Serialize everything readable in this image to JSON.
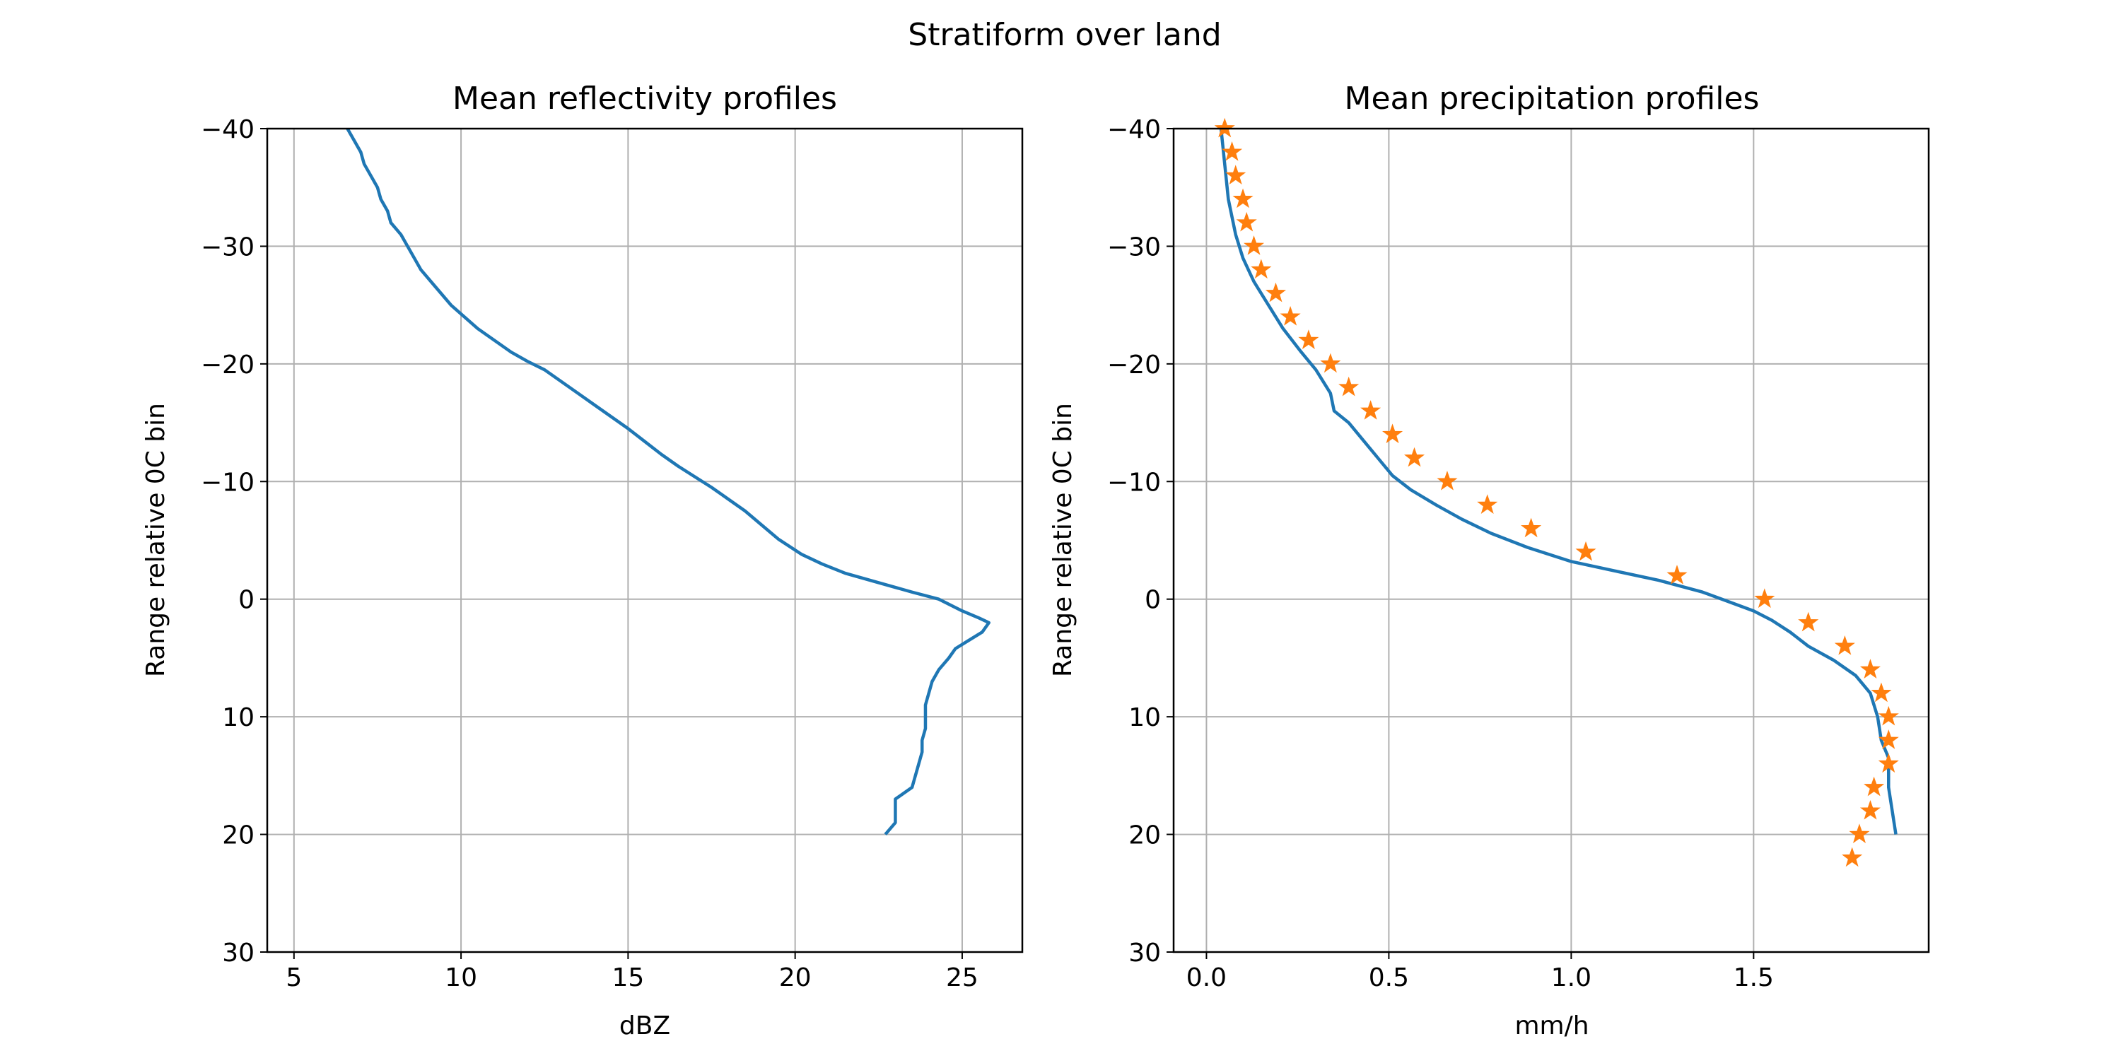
{
  "figure": {
    "suptitle": "Stratiform over land"
  },
  "chart_data": [
    {
      "type": "line",
      "title": "Mean reflectivity profiles",
      "xlabel": "dBZ",
      "ylabel": "Range relative 0C bin",
      "xlim": [
        4.2,
        26.8
      ],
      "ylim": [
        30,
        -40
      ],
      "y_inverted": true,
      "xticks": [
        5,
        10,
        15,
        20,
        25
      ],
      "yticks": [
        -40,
        -30,
        -20,
        -10,
        0,
        10,
        20,
        30
      ],
      "grid": true,
      "series": [
        {
          "color": "#1f77b4",
          "marker": "none",
          "points": [
            [
              6.6,
              -40
            ],
            [
              6.8,
              -39
            ],
            [
              7.0,
              -38
            ],
            [
              7.1,
              -37
            ],
            [
              7.3,
              -36
            ],
            [
              7.5,
              -35
            ],
            [
              7.6,
              -34
            ],
            [
              7.8,
              -33
            ],
            [
              7.9,
              -32
            ],
            [
              8.2,
              -31
            ],
            [
              8.4,
              -30
            ],
            [
              8.6,
              -29
            ],
            [
              8.8,
              -28
            ],
            [
              9.1,
              -27
            ],
            [
              9.4,
              -26
            ],
            [
              9.7,
              -25
            ],
            [
              10.1,
              -24
            ],
            [
              10.5,
              -23
            ],
            [
              11.0,
              -22
            ],
            [
              11.5,
              -21
            ],
            [
              12.0,
              -20.2
            ],
            [
              12.5,
              -19.5
            ],
            [
              13.0,
              -18.5
            ],
            [
              13.5,
              -17.5
            ],
            [
              14.0,
              -16.5
            ],
            [
              14.5,
              -15.5
            ],
            [
              15.0,
              -14.5
            ],
            [
              15.5,
              -13.4
            ],
            [
              16.0,
              -12.3
            ],
            [
              16.5,
              -11.3
            ],
            [
              17.0,
              -10.4
            ],
            [
              17.5,
              -9.5
            ],
            [
              18.0,
              -8.5
            ],
            [
              18.5,
              -7.5
            ],
            [
              19.0,
              -6.3
            ],
            [
              19.5,
              -5.1
            ],
            [
              20.2,
              -3.8
            ],
            [
              20.8,
              -3.0
            ],
            [
              21.5,
              -2.2
            ],
            [
              22.5,
              -1.4
            ],
            [
              23.5,
              -0.6
            ],
            [
              24.3,
              0
            ],
            [
              25.0,
              1.0
            ],
            [
              25.5,
              1.6
            ],
            [
              25.8,
              2.0
            ],
            [
              25.6,
              2.8
            ],
            [
              25.2,
              3.5
            ],
            [
              24.8,
              4.2
            ],
            [
              24.6,
              5.0
            ],
            [
              24.3,
              6.0
            ],
            [
              24.1,
              7.0
            ],
            [
              24.0,
              8.0
            ],
            [
              23.9,
              9.0
            ],
            [
              23.9,
              10
            ],
            [
              23.9,
              11
            ],
            [
              23.8,
              12
            ],
            [
              23.8,
              13
            ],
            [
              23.7,
              14
            ],
            [
              23.6,
              15
            ],
            [
              23.5,
              16
            ],
            [
              23.0,
              17
            ],
            [
              23.0,
              18
            ],
            [
              23.0,
              19
            ],
            [
              22.7,
              20
            ]
          ]
        }
      ]
    },
    {
      "type": "line",
      "title": "Mean precipitation profiles",
      "xlabel": "mm/h",
      "ylabel": "Range relative 0C bin",
      "xlim": [
        -0.09,
        1.98
      ],
      "ylim": [
        30,
        -40
      ],
      "y_inverted": true,
      "xticks": [
        0.0,
        0.5,
        1.0,
        1.5
      ],
      "xtick_labels": [
        "0.0",
        "0.5",
        "1.0",
        "1.5"
      ],
      "yticks": [
        -40,
        -30,
        -20,
        -10,
        0,
        10,
        20,
        30
      ],
      "grid": true,
      "series": [
        {
          "color": "#1f77b4",
          "marker": "none",
          "points": [
            [
              0.04,
              -40
            ],
            [
              0.05,
              -37
            ],
            [
              0.06,
              -34
            ],
            [
              0.08,
              -31
            ],
            [
              0.1,
              -29
            ],
            [
              0.13,
              -27
            ],
            [
              0.17,
              -25
            ],
            [
              0.21,
              -23
            ],
            [
              0.26,
              -21
            ],
            [
              0.3,
              -19.5
            ],
            [
              0.34,
              -17.5
            ],
            [
              0.35,
              -16
            ],
            [
              0.39,
              -15
            ],
            [
              0.43,
              -13.5
            ],
            [
              0.47,
              -12
            ],
            [
              0.51,
              -10.5
            ],
            [
              0.56,
              -9.3
            ],
            [
              0.63,
              -8
            ],
            [
              0.7,
              -6.8
            ],
            [
              0.78,
              -5.6
            ],
            [
              0.88,
              -4.4
            ],
            [
              1.0,
              -3.2
            ],
            [
              1.12,
              -2.4
            ],
            [
              1.24,
              -1.6
            ],
            [
              1.36,
              -0.6
            ],
            [
              1.43,
              0.2
            ],
            [
              1.5,
              1.0
            ],
            [
              1.55,
              1.8
            ],
            [
              1.6,
              2.8
            ],
            [
              1.65,
              4.0
            ],
            [
              1.72,
              5.2
            ],
            [
              1.78,
              6.5
            ],
            [
              1.82,
              8.0
            ],
            [
              1.84,
              10.0
            ],
            [
              1.85,
              12.0
            ],
            [
              1.87,
              13.5
            ],
            [
              1.87,
              16.0
            ],
            [
              1.88,
              18.0
            ],
            [
              1.89,
              20.0
            ]
          ]
        },
        {
          "color": "#ff7f0e",
          "marker": "star",
          "points": [
            [
              0.05,
              -40
            ],
            [
              0.07,
              -38
            ],
            [
              0.08,
              -36
            ],
            [
              0.1,
              -34
            ],
            [
              0.11,
              -32
            ],
            [
              0.13,
              -30
            ],
            [
              0.15,
              -28
            ],
            [
              0.19,
              -26
            ],
            [
              0.23,
              -24
            ],
            [
              0.28,
              -22
            ],
            [
              0.34,
              -20
            ],
            [
              0.39,
              -18
            ],
            [
              0.45,
              -16
            ],
            [
              0.51,
              -14
            ],
            [
              0.57,
              -12
            ],
            [
              0.66,
              -10
            ],
            [
              0.77,
              -8
            ],
            [
              0.89,
              -6
            ],
            [
              1.04,
              -4
            ],
            [
              1.29,
              -2
            ],
            [
              1.53,
              0
            ],
            [
              1.65,
              2
            ],
            [
              1.75,
              4
            ],
            [
              1.82,
              6
            ],
            [
              1.85,
              8
            ],
            [
              1.87,
              10
            ],
            [
              1.87,
              12
            ],
            [
              1.87,
              14
            ],
            [
              1.83,
              16
            ],
            [
              1.82,
              18
            ],
            [
              1.79,
              20
            ],
            [
              1.77,
              22
            ]
          ]
        }
      ]
    }
  ]
}
